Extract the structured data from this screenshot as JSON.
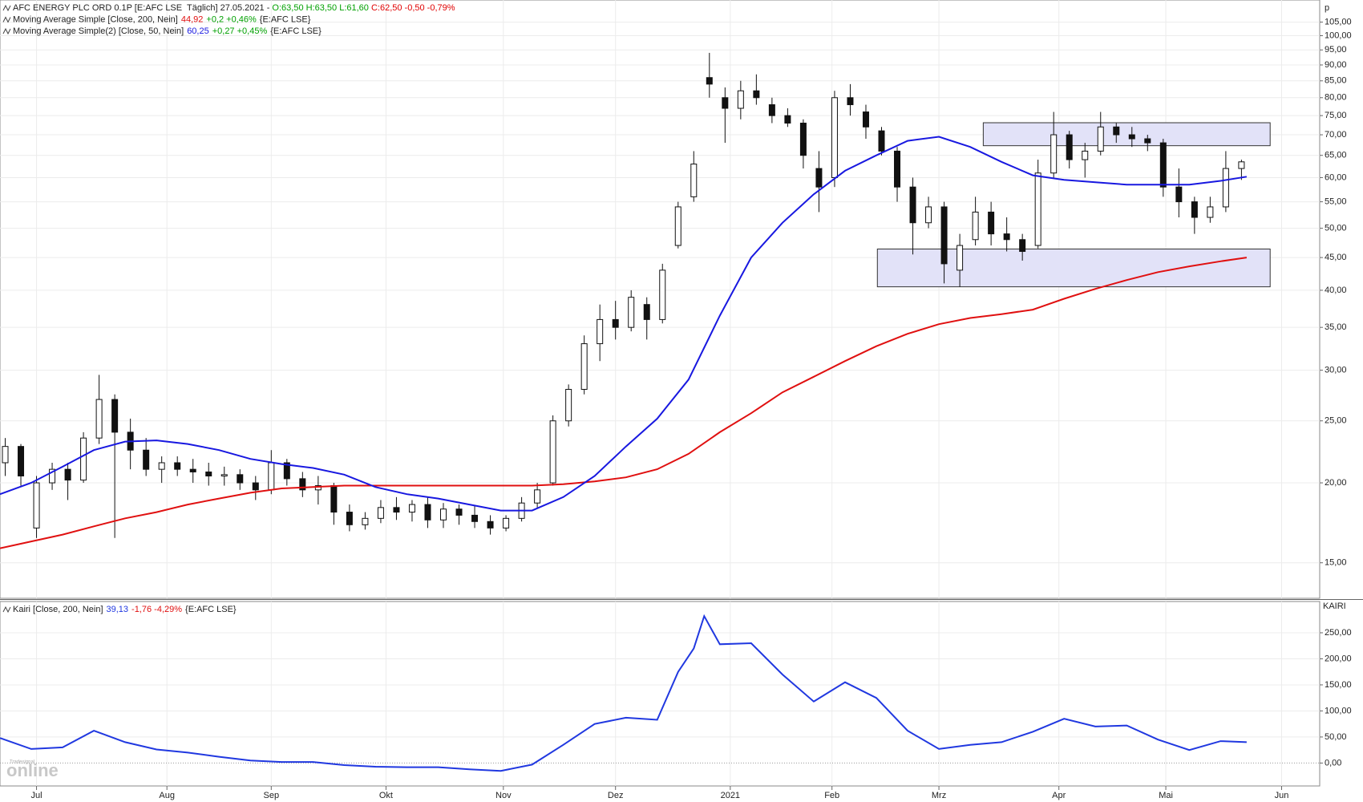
{
  "chart_data": [
    {
      "type": "candlestick",
      "title": [
        {
          "text": "AFC ENERGY PLC ORD 0.1P [E:AFC LSE  Täglich] 27.05.2021 - ",
          "color": "#222222"
        },
        {
          "text": "O:63,50 H:63,50 L:61,60 ",
          "color": "#00a000"
        },
        {
          "text": "C:62,50 -0,50 -0,79%",
          "color": "#e00000"
        }
      ],
      "axis_label": "p",
      "yscale": "log",
      "ylim": [
        13.2,
        113.7
      ],
      "yticks": [
        {
          "value": 15,
          "label": "15,00"
        },
        {
          "value": 20,
          "label": "20,00"
        },
        {
          "value": 25,
          "label": "25,00"
        },
        {
          "value": 30,
          "label": "30,00"
        },
        {
          "value": 35,
          "label": "35,00"
        },
        {
          "value": 40,
          "label": "40,00"
        },
        {
          "value": 45,
          "label": "45,00"
        },
        {
          "value": 50,
          "label": "50,00"
        },
        {
          "value": 55,
          "label": "55,00"
        },
        {
          "value": 60,
          "label": "60,00"
        },
        {
          "value": 65,
          "label": "65,00"
        },
        {
          "value": 70,
          "label": "70,00"
        },
        {
          "value": 75,
          "label": "75,00"
        },
        {
          "value": 80,
          "label": "80,00"
        },
        {
          "value": 85,
          "label": "85,00"
        },
        {
          "value": 90,
          "label": "90,00"
        },
        {
          "value": 95,
          "label": "95,00"
        },
        {
          "value": 100,
          "label": "100,00"
        },
        {
          "value": 105,
          "label": "105,00"
        }
      ],
      "grid": true,
      "x": [
        1,
        4,
        7,
        10,
        13,
        16,
        19,
        22,
        25,
        28,
        31,
        34,
        37,
        40,
        43,
        46,
        49,
        52,
        55,
        58,
        61,
        64,
        67,
        70,
        73,
        76,
        79,
        82,
        85,
        88,
        91,
        94,
        97,
        100,
        103,
        106,
        109,
        112,
        115,
        118,
        121,
        124,
        127,
        130,
        133,
        136,
        139,
        142,
        145,
        148,
        151,
        154,
        157,
        160,
        163,
        166,
        169,
        172,
        175,
        178,
        181,
        184,
        187,
        190,
        193,
        196,
        199,
        202,
        205,
        208,
        211,
        214,
        217,
        220,
        223,
        226,
        229,
        232,
        235,
        238
      ],
      "open": [
        21.5,
        22.8,
        17,
        20,
        21,
        20.2,
        23.5,
        27,
        24,
        22.5,
        21,
        21.5,
        21,
        20.8,
        20.5,
        20.6,
        20,
        19.5,
        21.5,
        20.3,
        19.5,
        19.8,
        18,
        17.2,
        17.6,
        18.3,
        18,
        18.5,
        17.5,
        18.2,
        17.8,
        17.4,
        17,
        17.6,
        18.6,
        20,
        25,
        28,
        33,
        36,
        35,
        38,
        36,
        47,
        56,
        86,
        80,
        77,
        82,
        78,
        75,
        73,
        62,
        60,
        80,
        76,
        71,
        66,
        58,
        51,
        54,
        43,
        48,
        53,
        49,
        48,
        47,
        61,
        70,
        64,
        66,
        72,
        70,
        69,
        68,
        58,
        55,
        52,
        54,
        62
      ],
      "high": [
        23.5,
        23,
        20.5,
        21.5,
        21.5,
        24,
        29.5,
        27.5,
        25.2,
        23.5,
        22,
        22,
        21.8,
        21.5,
        21.2,
        21,
        20.5,
        22.5,
        21.8,
        20.8,
        20.5,
        20,
        18.5,
        18,
        18.8,
        19,
        18.8,
        19,
        18.6,
        18.5,
        18.4,
        17.8,
        17.8,
        19,
        20,
        25.5,
        28.5,
        34,
        38,
        38.5,
        40,
        39,
        44,
        55,
        66,
        94,
        83,
        85,
        87,
        80,
        77,
        74,
        66,
        82,
        84,
        78,
        72,
        67,
        60,
        56,
        55,
        49,
        56,
        55,
        52,
        49,
        64,
        76,
        71,
        68,
        76,
        73,
        72,
        70,
        69,
        62,
        56,
        56,
        66,
        64
      ],
      "low": [
        20.5,
        19.8,
        16.4,
        19.5,
        18.8,
        20,
        23,
        16.4,
        21,
        20.5,
        20,
        20.5,
        20,
        19.8,
        19.8,
        19.5,
        18.8,
        19.2,
        19.8,
        19,
        18.5,
        17.2,
        16.8,
        16.9,
        17.3,
        17.5,
        17.4,
        17,
        17,
        17.2,
        17,
        16.6,
        16.8,
        17.4,
        18.3,
        19.8,
        24.5,
        27.5,
        31,
        33.5,
        34.5,
        33.5,
        35.5,
        46.5,
        55,
        80,
        68,
        74,
        78,
        73,
        72,
        62,
        53,
        58,
        75,
        69,
        65,
        55,
        45.5,
        50,
        41,
        40.5,
        47,
        47,
        46,
        44.5,
        46.5,
        60,
        62,
        60,
        65,
        68,
        67,
        66,
        56,
        52,
        49,
        51,
        53,
        59.5
      ],
      "close": [
        22.8,
        20.5,
        20,
        21,
        20.2,
        23.5,
        27,
        24,
        22.5,
        21,
        21.5,
        21,
        20.8,
        20.5,
        20.6,
        20,
        19.5,
        21.5,
        20.3,
        19.5,
        19.8,
        18,
        17.2,
        17.6,
        18.3,
        18,
        18.5,
        17.5,
        18.2,
        17.8,
        17.4,
        17,
        17.6,
        18.6,
        19.5,
        25,
        28,
        33,
        36,
        35,
        39,
        36,
        43,
        54,
        63,
        84,
        77,
        82,
        80,
        75,
        73,
        65,
        58,
        80,
        78,
        72,
        66,
        58,
        51,
        54,
        44,
        47,
        53,
        49,
        48,
        46,
        61,
        70,
        64,
        66,
        72,
        70,
        69,
        68,
        58,
        55,
        52,
        54,
        62,
        63.5
      ],
      "up_color": "#ffffff",
      "down_color": "#111111",
      "series": [
        {
          "name": "Moving Average Simple [Close, 200, Nein]",
          "color": "#e01010",
          "legend_values": [
            {
              "text": "44,92",
              "color": "#e01010"
            },
            {
              "text": "+0,2 +0,46%",
              "color": "#00a000"
            },
            {
              "text": "{E:AFC LSE}",
              "color": "#222222"
            }
          ],
          "x": [
            0,
            6,
            12,
            18,
            24,
            30,
            36,
            42,
            48,
            54,
            60,
            66,
            72,
            78,
            84,
            90,
            96,
            102,
            108,
            114,
            120,
            126,
            132,
            138,
            144,
            150,
            156,
            162,
            168,
            174,
            180,
            186,
            192,
            198,
            204,
            210,
            216,
            222,
            228,
            234,
            239
          ],
          "values": [
            15.8,
            16.2,
            16.6,
            17.1,
            17.6,
            18,
            18.5,
            18.9,
            19.3,
            19.6,
            19.7,
            19.8,
            19.8,
            19.8,
            19.8,
            19.8,
            19.8,
            19.8,
            19.9,
            20.1,
            20.4,
            21,
            22.2,
            24,
            25.7,
            27.7,
            29.3,
            31,
            32.7,
            34.2,
            35.4,
            36.2,
            36.7,
            37.3,
            38.8,
            40.2,
            41.5,
            42.7,
            43.6,
            44.4,
            45
          ]
        },
        {
          "name": "Moving Average Simple(2) [Close, 50, Nein]",
          "color": "#1818e0",
          "legend_values": [
            {
              "text": "60,25",
              "color": "#1818e0"
            },
            {
              "text": "+0,27 +0,45%",
              "color": "#00a000"
            },
            {
              "text": "{E:AFC LSE}",
              "color": "#222222"
            }
          ],
          "x": [
            0,
            6,
            12,
            18,
            24,
            30,
            36,
            42,
            48,
            54,
            60,
            66,
            72,
            78,
            84,
            90,
            96,
            102,
            108,
            114,
            120,
            126,
            132,
            138,
            144,
            150,
            156,
            162,
            168,
            174,
            180,
            186,
            192,
            198,
            204,
            210,
            216,
            222,
            228,
            234,
            239
          ],
          "values": [
            19.2,
            20,
            21.2,
            22.5,
            23.2,
            23.3,
            23,
            22.5,
            21.8,
            21.4,
            21.1,
            20.6,
            19.7,
            19.2,
            18.9,
            18.5,
            18.1,
            18.1,
            19,
            20.5,
            22.8,
            25.2,
            29,
            36.5,
            45,
            51,
            56.5,
            61.5,
            65,
            68.5,
            69.5,
            67,
            63.5,
            60.5,
            59.5,
            59,
            58.5,
            58.5,
            58.5,
            59.3,
            60.2
          ]
        }
      ],
      "boxes": [
        {
          "x": [
            188.5,
            243.5
          ],
          "y": [
            67.3,
            73.1
          ]
        },
        {
          "x": [
            168.2,
            243.5
          ],
          "y": [
            40.5,
            46.4
          ]
        }
      ],
      "box_color": "#e2e2f8"
    },
    {
      "type": "line",
      "title": [],
      "axis_label": "KAIRI",
      "ylim": [
        -44,
        310
      ],
      "yticks": [
        {
          "value": 0,
          "label": "0,00"
        },
        {
          "value": 50,
          "label": "50,00"
        },
        {
          "value": 100,
          "label": "100,00"
        },
        {
          "value": 150,
          "label": "150,00"
        },
        {
          "value": 200,
          "label": "200,00"
        },
        {
          "value": 250,
          "label": "250,00"
        }
      ],
      "grid": true,
      "xlim": [
        0,
        253
      ],
      "xticks": [
        {
          "value": 7,
          "label": "Jul"
        },
        {
          "value": 32,
          "label": "Aug"
        },
        {
          "value": 52,
          "label": "Sep"
        },
        {
          "value": 74,
          "label": "Okt"
        },
        {
          "value": 96.5,
          "label": "Nov"
        },
        {
          "value": 118,
          "label": "Dez"
        },
        {
          "value": 140,
          "label": "2021"
        },
        {
          "value": 159.5,
          "label": "Feb"
        },
        {
          "value": 180,
          "label": "Mrz"
        },
        {
          "value": 203,
          "label": "Apr"
        },
        {
          "value": 223.5,
          "label": "Mai"
        },
        {
          "value": 245.7,
          "label": "Jun"
        }
      ],
      "series": [
        {
          "name": "Kairi [Close, 200, Nein]",
          "color": "#2038e0",
          "legend_values": [
            {
              "text": "39,13",
              "color": "#2038e0"
            },
            {
              "text": "-1,76 -4,29%",
              "color": "#e01010"
            },
            {
              "text": "{E:AFC LSE}",
              "color": "#222222"
            }
          ],
          "x": [
            0,
            6,
            12,
            18,
            24,
            30,
            36,
            42,
            48,
            54,
            60,
            66,
            72,
            78,
            84,
            90,
            96,
            102,
            108,
            114,
            120,
            126,
            130,
            133,
            135,
            138,
            144,
            150,
            156,
            162,
            168,
            174,
            180,
            186,
            192,
            198,
            204,
            210,
            216,
            222,
            228,
            234,
            239
          ],
          "values": [
            48,
            27,
            30,
            62,
            40,
            26,
            20,
            12,
            5,
            2,
            2,
            -4,
            -7,
            -8,
            -8,
            -12,
            -15,
            -3,
            35,
            75,
            87,
            83,
            175,
            220,
            282,
            228,
            230,
            170,
            118,
            155,
            125,
            62,
            27,
            35,
            40,
            60,
            85,
            70,
            72,
            45,
            25,
            42,
            40
          ]
        }
      ]
    }
  ],
  "watermark": [
    "Tradesignal",
    "online"
  ]
}
